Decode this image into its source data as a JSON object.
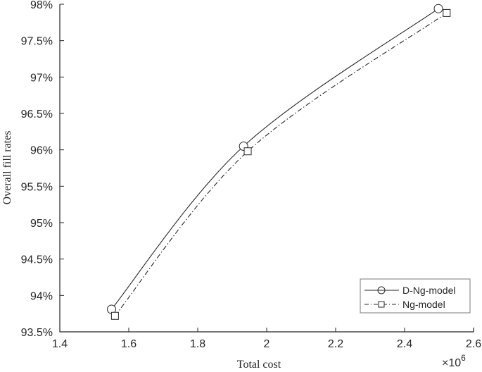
{
  "chart_data": {
    "type": "line",
    "title": "",
    "xlabel": "Total cost",
    "ylabel": "Overall fill rates",
    "x_multiplier": "×10^6",
    "xlim": [
      1.4,
      2.6
    ],
    "ylim": [
      93.5,
      98
    ],
    "x_ticks": [
      "1.4",
      "1.6",
      "1.8",
      "2",
      "2.2",
      "2.4",
      "2.6"
    ],
    "y_ticks": [
      "93.5%",
      "94%",
      "94.5%",
      "95%",
      "95.5%",
      "96%",
      "96.5%",
      "97%",
      "97.5%",
      "98%"
    ],
    "grid": false,
    "legend_position": "lower right",
    "series": [
      {
        "name": "D-Ng-model",
        "marker": "circle",
        "line": "solid",
        "x": [
          1.55,
          1.933,
          2.498
        ],
        "y": [
          93.81,
          96.05,
          97.94
        ]
      },
      {
        "name": "Ng-model",
        "marker": "square",
        "line": "dash-dot",
        "x": [
          1.56,
          1.945,
          2.522
        ],
        "y": [
          93.72,
          95.98,
          97.88
        ]
      }
    ]
  },
  "labels": {
    "xlabel": "Total cost",
    "ylabel": "Overall fill rates",
    "exp_base": "×10",
    "exp_power": "6",
    "legend": [
      "D-Ng-model",
      "Ng-model"
    ]
  }
}
